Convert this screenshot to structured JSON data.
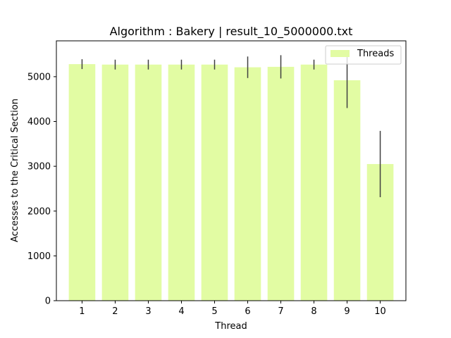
{
  "chart_data": {
    "type": "bar",
    "title": "Algorithm : Bakery | result_10_5000000.txt",
    "xlabel": "Thread",
    "ylabel": "Accesses to the Critical Section",
    "categories": [
      "1",
      "2",
      "3",
      "4",
      "5",
      "6",
      "7",
      "8",
      "9",
      "10"
    ],
    "series": [
      {
        "name": "Threads",
        "values": [
          5280,
          5270,
          5270,
          5270,
          5270,
          5210,
          5220,
          5270,
          4920,
          3050
        ],
        "error": [
          110,
          110,
          110,
          110,
          110,
          240,
          260,
          110,
          620,
          740
        ]
      }
    ],
    "ylim": [
      0,
      5800
    ],
    "yticks": [
      0,
      1000,
      2000,
      3000,
      4000,
      5000
    ],
    "ytick_labels": [
      "0",
      "1000",
      "2000",
      "3000",
      "4000",
      "5000"
    ],
    "legend_position": "top-right",
    "grid": false,
    "colors": {
      "bar": "#e2fca3",
      "error": "#404040",
      "axis": "#000000"
    }
  }
}
